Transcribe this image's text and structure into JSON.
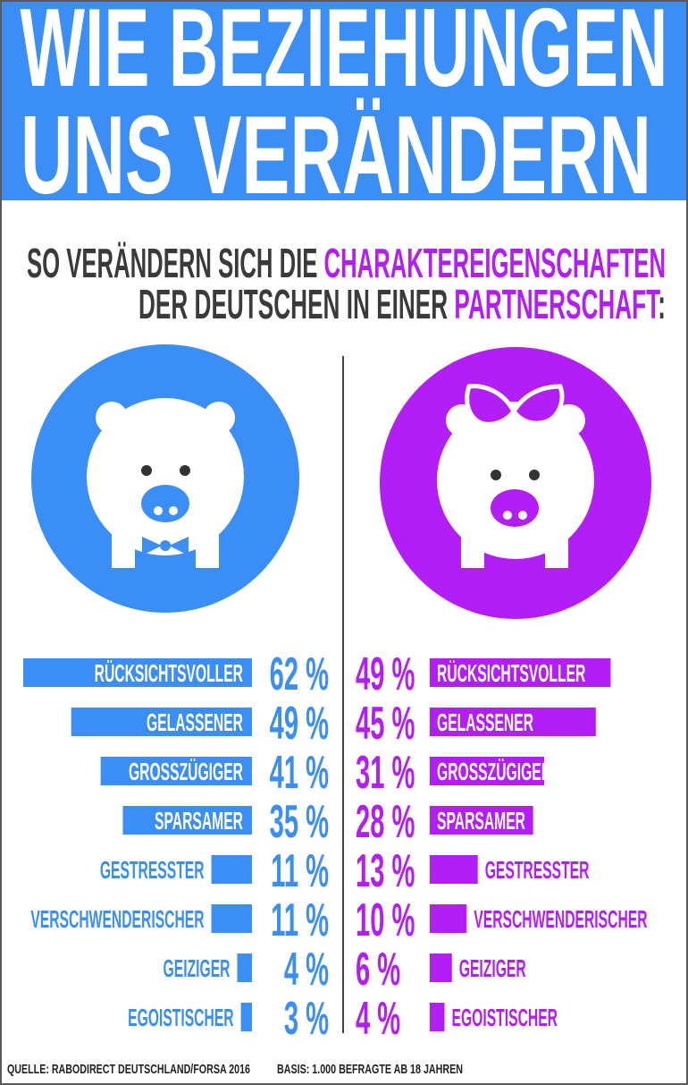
{
  "title": {
    "line1": "WIE BEZIEHUNGEN",
    "line2": "UNS VERÄNDERN"
  },
  "subtitle": {
    "line1_plain": "SO VERÄNDERN SICH DIE ",
    "line1_highlight": "CHARAKTEREIGENSCHAFTEN",
    "line2_plain": "DER DEUTSCHEN IN EINER ",
    "line2_highlight": "PARTNERSCHAFT",
    "line2_end": ":"
  },
  "colors": {
    "men": "#3a8ef6",
    "women": "#b31ef6",
    "text": "#3a3a3a",
    "header": "#3a8ef6"
  },
  "icons": {
    "men": "pig-with-bowtie-icon",
    "women": "pig-with-bow-icon"
  },
  "chart_data": {
    "type": "bar",
    "orientation": "horizontal-butterfly",
    "unit": "%",
    "series": [
      {
        "side": "left",
        "color": "#3a8ef6",
        "categories": [
          "RÜCKSICHTSVOLLER",
          "GELASSENER",
          "GROSSZÜGIGER",
          "SPARSAMER",
          "GESTRESSTER",
          "VERSCHWENDERISCHER",
          "GEIZIGER",
          "EGOISTISCHER"
        ],
        "values": [
          62,
          49,
          41,
          35,
          11,
          11,
          4,
          3
        ]
      },
      {
        "side": "right",
        "color": "#b31ef6",
        "categories": [
          "RÜCKSICHTSVOLLER",
          "GELASSENER",
          "GROSSZÜGIGER",
          "SPARSAMER",
          "GESTRESSTER",
          "VERSCHWENDERISCHER",
          "GEIZIGER",
          "EGOISTISCHER"
        ],
        "values": [
          49,
          45,
          31,
          28,
          13,
          10,
          6,
          4
        ]
      }
    ]
  },
  "footer": {
    "source": "QUELLE: RABODIRECT DEUTSCHLAND/FORSA 2016",
    "basis": "BASIS: 1.000 BEFRAGTE AB 18 JAHREN"
  }
}
